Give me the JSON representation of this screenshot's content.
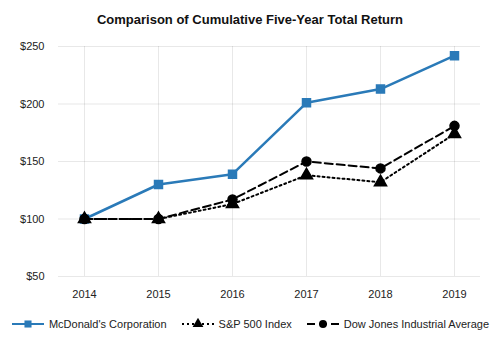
{
  "chart_data": {
    "type": "line",
    "title": "Comparison of Cumulative Five-Year Total Return",
    "categories": [
      "2014",
      "2015",
      "2016",
      "2017",
      "2018",
      "2019"
    ],
    "series": [
      {
        "name": "McDonald's Corporation",
        "color": "#2a7ab8",
        "marker": "square",
        "line_style": "solid",
        "values": [
          100,
          130,
          139,
          201,
          213,
          242
        ]
      },
      {
        "name": "S&P 500 Index",
        "color": "#000000",
        "marker": "triangle",
        "line_style": "dotted",
        "values": [
          100,
          100,
          113,
          138,
          132,
          174
        ]
      },
      {
        "name": "Dow Jones Industrial Average",
        "color": "#000000",
        "marker": "circle",
        "line_style": "dashed",
        "values": [
          100,
          100,
          117,
          150,
          144,
          181
        ]
      }
    ],
    "ylim": [
      50,
      250
    ],
    "yticks": [
      {
        "value": 50,
        "label": "$50"
      },
      {
        "value": 100,
        "label": "$100"
      },
      {
        "value": 150,
        "label": "$150"
      },
      {
        "value": 200,
        "label": "$200"
      },
      {
        "value": 250,
        "label": "$250"
      }
    ],
    "grid": true,
    "legend": "bottom"
  }
}
